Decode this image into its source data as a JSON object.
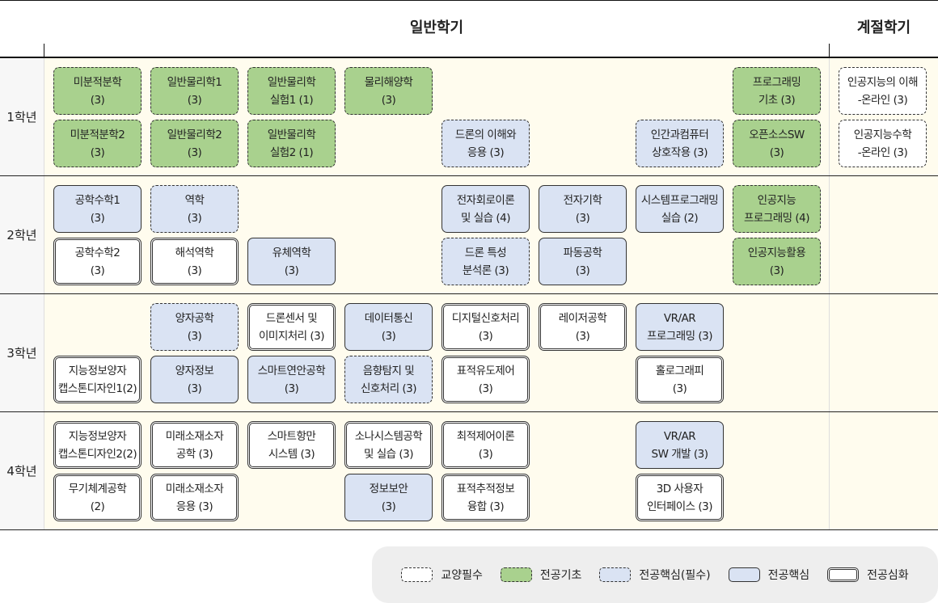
{
  "header": {
    "regular": "일반학기",
    "season": "계절학기"
  },
  "years": [
    "1학년",
    "2학년",
    "3학년",
    "4학년"
  ],
  "colors": {
    "ge": "#ffffff",
    "fb": "#a9d18e",
    "mc": "#dae3f3",
    "adv": "#ffffff"
  },
  "legend": [
    {
      "type": "ge",
      "label": "교양필수"
    },
    {
      "type": "fb",
      "label": "전공기초"
    },
    {
      "type": "mcr",
      "label": "전공핵심(필수)"
    },
    {
      "type": "mc",
      "label": "전공핵심"
    },
    {
      "type": "adv",
      "label": "전공심화"
    }
  ],
  "courses": [
    {
      "year": 0,
      "row": 0,
      "col": 0,
      "type": "fb",
      "lines": [
        "미분적분학",
        "(3)"
      ]
    },
    {
      "year": 0,
      "row": 0,
      "col": 1,
      "type": "fb",
      "lines": [
        "일반물리학1",
        "(3)"
      ]
    },
    {
      "year": 0,
      "row": 0,
      "col": 2,
      "type": "fb",
      "lines": [
        "일반물리학",
        "실험1 (1)"
      ]
    },
    {
      "year": 0,
      "row": 0,
      "col": 3,
      "type": "fb",
      "lines": [
        "물리해양학",
        "(3)"
      ]
    },
    {
      "year": 0,
      "row": 0,
      "col": 7,
      "type": "fb",
      "lines": [
        "프로그래밍",
        "기초 (3)"
      ]
    },
    {
      "year": 0,
      "row": 0,
      "col": "season",
      "type": "ge",
      "lines": [
        "인공지능의 이해",
        "-온라인 (3)"
      ]
    },
    {
      "year": 0,
      "row": 1,
      "col": 0,
      "type": "fb",
      "lines": [
        "미분적분학2",
        "(3)"
      ]
    },
    {
      "year": 0,
      "row": 1,
      "col": 1,
      "type": "fb",
      "lines": [
        "일반물리학2",
        "(3)"
      ]
    },
    {
      "year": 0,
      "row": 1,
      "col": 2,
      "type": "fb",
      "lines": [
        "일반물리학",
        "실험2 (1)"
      ]
    },
    {
      "year": 0,
      "row": 1,
      "col": 4,
      "type": "mcr",
      "lines": [
        "드론의 이해와",
        "응용 (3)"
      ]
    },
    {
      "year": 0,
      "row": 1,
      "col": 6,
      "type": "mcr",
      "lines": [
        "인간과컴퓨터",
        "상호작용 (3)"
      ]
    },
    {
      "year": 0,
      "row": 1,
      "col": 7,
      "type": "fb",
      "lines": [
        "오픈소스SW",
        "(3)"
      ]
    },
    {
      "year": 0,
      "row": 1,
      "col": "season",
      "type": "ge",
      "lines": [
        "인공지능수학",
        "-온라인 (3)"
      ]
    },
    {
      "year": 1,
      "row": 0,
      "col": 0,
      "type": "mc",
      "lines": [
        "공학수학1",
        "(3)"
      ]
    },
    {
      "year": 1,
      "row": 0,
      "col": 1,
      "type": "mcr",
      "lines": [
        "역학",
        "(3)"
      ]
    },
    {
      "year": 1,
      "row": 0,
      "col": 4,
      "type": "mc",
      "lines": [
        "전자회로이론",
        "및 실습 (4)"
      ]
    },
    {
      "year": 1,
      "row": 0,
      "col": 5,
      "type": "mc",
      "lines": [
        "전자기학",
        "(3)"
      ]
    },
    {
      "year": 1,
      "row": 0,
      "col": 6,
      "type": "mc",
      "lines": [
        "시스템프로그래밍",
        "실습 (2)"
      ]
    },
    {
      "year": 1,
      "row": 0,
      "col": 7,
      "type": "fb",
      "lines": [
        "인공지능",
        "프로그래밍 (4)"
      ]
    },
    {
      "year": 1,
      "row": 1,
      "col": 0,
      "type": "adv",
      "lines": [
        "공학수학2",
        "(3)"
      ]
    },
    {
      "year": 1,
      "row": 1,
      "col": 1,
      "type": "adv",
      "lines": [
        "해석역학",
        "(3)"
      ]
    },
    {
      "year": 1,
      "row": 1,
      "col": 2,
      "type": "mc",
      "lines": [
        "유체역학",
        "(3)"
      ]
    },
    {
      "year": 1,
      "row": 1,
      "col": 4,
      "type": "mcr",
      "lines": [
        "드론 특성",
        "분석론 (3)"
      ]
    },
    {
      "year": 1,
      "row": 1,
      "col": 5,
      "type": "mc",
      "lines": [
        "파동공학",
        "(3)"
      ]
    },
    {
      "year": 1,
      "row": 1,
      "col": 7,
      "type": "fb",
      "lines": [
        "인공지능활용",
        "(3)"
      ]
    },
    {
      "year": 2,
      "row": 0,
      "col": 1,
      "type": "mcr",
      "lines": [
        "양자공학",
        "(3)"
      ]
    },
    {
      "year": 2,
      "row": 0,
      "col": 2,
      "type": "adv",
      "lines": [
        "드론센서 및",
        "이미지처리 (3)"
      ]
    },
    {
      "year": 2,
      "row": 0,
      "col": 3,
      "type": "mc",
      "lines": [
        "데이터통신",
        "(3)"
      ]
    },
    {
      "year": 2,
      "row": 0,
      "col": 4,
      "type": "adv",
      "lines": [
        "디지털신호처리",
        "(3)"
      ]
    },
    {
      "year": 2,
      "row": 0,
      "col": 5,
      "type": "adv",
      "lines": [
        "레이저공학",
        "(3)"
      ]
    },
    {
      "year": 2,
      "row": 0,
      "col": 6,
      "type": "mc",
      "lines": [
        "VR/AR",
        "프로그래밍 (3)"
      ]
    },
    {
      "year": 2,
      "row": 1,
      "col": 0,
      "type": "adv",
      "lines": [
        "지능정보양자",
        "캡스톤디자인1(2)"
      ]
    },
    {
      "year": 2,
      "row": 1,
      "col": 1,
      "type": "mc",
      "lines": [
        "양자정보",
        "(3)"
      ]
    },
    {
      "year": 2,
      "row": 1,
      "col": 2,
      "type": "mc",
      "lines": [
        "스마트연안공학",
        "(3)"
      ]
    },
    {
      "year": 2,
      "row": 1,
      "col": 3,
      "type": "mcr",
      "lines": [
        "음향탐지 및",
        "신호처리 (3)"
      ]
    },
    {
      "year": 2,
      "row": 1,
      "col": 4,
      "type": "adv",
      "lines": [
        "표적유도제어",
        "(3)"
      ]
    },
    {
      "year": 2,
      "row": 1,
      "col": 6,
      "type": "adv",
      "lines": [
        "홀로그래피",
        "(3)"
      ]
    },
    {
      "year": 3,
      "row": 0,
      "col": 0,
      "type": "adv",
      "lines": [
        "지능정보양자",
        "캡스톤디자인2(2)"
      ]
    },
    {
      "year": 3,
      "row": 0,
      "col": 1,
      "type": "adv",
      "lines": [
        "미래소재소자",
        "공학 (3)"
      ]
    },
    {
      "year": 3,
      "row": 0,
      "col": 2,
      "type": "adv",
      "lines": [
        "스마트항만",
        "시스템 (3)"
      ]
    },
    {
      "year": 3,
      "row": 0,
      "col": 3,
      "type": "adv",
      "lines": [
        "소나시스템공학",
        "및 실습 (3)"
      ]
    },
    {
      "year": 3,
      "row": 0,
      "col": 4,
      "type": "adv",
      "lines": [
        "최적제어이론",
        "(3)"
      ]
    },
    {
      "year": 3,
      "row": 0,
      "col": 6,
      "type": "mc",
      "lines": [
        "VR/AR",
        "SW 개발 (3)"
      ]
    },
    {
      "year": 3,
      "row": 1,
      "col": 0,
      "type": "adv",
      "lines": [
        "무기체계공학",
        "(2)"
      ]
    },
    {
      "year": 3,
      "row": 1,
      "col": 1,
      "type": "adv",
      "lines": [
        "미래소재소자",
        "응용 (3)"
      ]
    },
    {
      "year": 3,
      "row": 1,
      "col": 3,
      "type": "mc",
      "lines": [
        "정보보안",
        "(3)"
      ]
    },
    {
      "year": 3,
      "row": 1,
      "col": 4,
      "type": "adv",
      "lines": [
        "표적추적정보",
        "융합 (3)"
      ]
    },
    {
      "year": 3,
      "row": 1,
      "col": 6,
      "type": "adv",
      "lines": [
        "3D 사용자",
        "인터페이스 (3)"
      ]
    }
  ]
}
